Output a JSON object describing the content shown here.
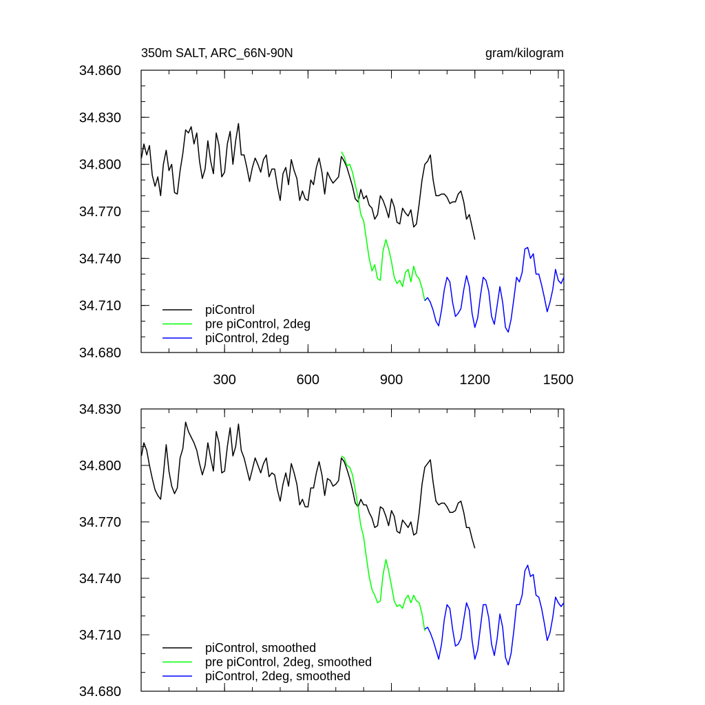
{
  "chart_data": [
    {
      "type": "line",
      "title_left": "350m SALT, ARC_66N-90N",
      "title_right": "gram/kilogram",
      "xlim": [
        0,
        1520
      ],
      "ylim": [
        34.68,
        34.86
      ],
      "x_ticks": [
        300,
        600,
        900,
        1200,
        1500
      ],
      "x_tick_labels": [
        "300",
        "600",
        "900",
        "1200",
        "1500"
      ],
      "x_minor_step": 100,
      "show_x_tick_labels": true,
      "y_ticks": [
        34.68,
        34.71,
        34.74,
        34.77,
        34.8,
        34.83,
        34.86
      ],
      "y_tick_labels": [
        "34.680",
        "34.710",
        "34.740",
        "34.770",
        "34.800",
        "34.830",
        "34.860"
      ],
      "y_minor_step": 0.01,
      "legend": {
        "position": "bottom-left",
        "entries": [
          "piControl",
          "pre piControl, 2deg",
          "piControl, 2deg"
        ]
      },
      "series": [
        {
          "name": "piControl",
          "color": "#000000",
          "x": [
            1,
            10,
            20,
            30,
            40,
            50,
            60,
            70,
            80,
            90,
            100,
            110,
            120,
            130,
            140,
            150,
            160,
            170,
            180,
            190,
            200,
            210,
            220,
            230,
            240,
            250,
            260,
            270,
            280,
            290,
            300,
            310,
            320,
            330,
            340,
            350,
            360,
            370,
            380,
            390,
            400,
            410,
            420,
            430,
            440,
            450,
            460,
            470,
            480,
            490,
            500,
            510,
            520,
            530,
            540,
            550,
            560,
            570,
            580,
            590,
            600,
            610,
            620,
            630,
            640,
            650,
            660,
            670,
            680,
            690,
            700,
            710,
            720,
            730,
            740,
            750,
            760,
            770,
            780,
            790,
            800,
            810,
            820,
            830,
            840,
            850,
            860,
            870,
            880,
            890,
            900,
            910,
            920,
            930,
            940,
            950,
            960,
            970,
            980,
            990,
            1000,
            1010,
            1020,
            1030,
            1040,
            1050,
            1060,
            1070,
            1080,
            1090,
            1100,
            1110,
            1120,
            1130,
            1140,
            1150,
            1160,
            1170,
            1180,
            1190,
            1200
          ],
          "y": [
            34.804,
            34.813,
            34.806,
            34.812,
            34.793,
            34.786,
            34.792,
            34.78,
            34.8,
            34.809,
            34.796,
            34.8,
            34.782,
            34.781,
            34.796,
            34.807,
            34.822,
            34.82,
            34.824,
            34.813,
            34.82,
            34.802,
            34.791,
            34.797,
            34.815,
            34.802,
            34.794,
            34.82,
            34.812,
            34.792,
            34.795,
            34.813,
            34.821,
            34.8,
            34.815,
            34.826,
            34.806,
            34.806,
            34.798,
            34.789,
            34.798,
            34.804,
            34.8,
            34.795,
            34.803,
            34.806,
            34.792,
            34.797,
            34.797,
            34.786,
            34.777,
            34.794,
            34.798,
            34.787,
            34.803,
            34.796,
            34.791,
            34.777,
            34.783,
            34.778,
            34.777,
            34.79,
            34.787,
            34.798,
            34.804,
            34.795,
            34.781,
            34.795,
            34.791,
            34.788,
            34.79,
            34.792,
            34.805,
            34.802,
            34.798,
            34.792,
            34.786,
            34.778,
            34.776,
            34.784,
            34.778,
            34.78,
            34.774,
            34.772,
            34.765,
            34.768,
            34.78,
            34.777,
            34.772,
            34.766,
            34.778,
            34.773,
            34.763,
            34.762,
            34.772,
            34.769,
            34.767,
            34.771,
            34.76,
            34.762,
            34.775,
            34.79,
            34.8,
            34.802,
            34.806,
            34.79,
            34.78,
            34.78,
            34.781,
            34.781,
            34.779,
            34.775,
            34.776,
            34.776,
            34.781,
            34.783,
            34.776,
            34.765,
            34.768,
            34.76,
            34.752
          ]
        },
        {
          "name": "pre piControl, 2deg",
          "color": "#00ff00",
          "x": [
            720,
            730,
            740,
            750,
            760,
            770,
            780,
            790,
            800,
            810,
            820,
            830,
            840,
            850,
            860,
            870,
            880,
            890,
            900,
            910,
            920,
            930,
            940,
            950,
            960,
            970,
            980,
            990,
            1000,
            1010,
            1020
          ],
          "y": [
            34.808,
            34.805,
            34.799,
            34.8,
            34.795,
            34.787,
            34.779,
            34.768,
            34.764,
            34.752,
            34.74,
            34.732,
            34.736,
            34.727,
            34.726,
            34.745,
            34.752,
            34.746,
            34.738,
            34.728,
            34.724,
            34.726,
            34.722,
            34.731,
            34.733,
            34.725,
            34.735,
            34.729,
            34.727,
            34.721,
            34.713
          ]
        },
        {
          "name": "piControl, 2deg",
          "color": "#0000ff",
          "x": [
            1020,
            1030,
            1040,
            1050,
            1060,
            1070,
            1080,
            1090,
            1100,
            1110,
            1120,
            1130,
            1140,
            1150,
            1160,
            1170,
            1180,
            1190,
            1200,
            1210,
            1220,
            1230,
            1240,
            1250,
            1260,
            1270,
            1280,
            1290,
            1300,
            1310,
            1320,
            1330,
            1340,
            1350,
            1360,
            1370,
            1380,
            1390,
            1400,
            1410,
            1420,
            1430,
            1440,
            1450,
            1460,
            1470,
            1480,
            1490,
            1500,
            1510,
            1520
          ],
          "y": [
            34.713,
            34.715,
            34.712,
            34.707,
            34.7,
            34.697,
            34.707,
            34.72,
            34.728,
            34.725,
            34.712,
            34.703,
            34.705,
            34.708,
            34.72,
            34.729,
            34.722,
            34.705,
            34.696,
            34.702,
            34.716,
            34.728,
            34.726,
            34.719,
            34.703,
            34.698,
            34.71,
            34.722,
            34.712,
            34.696,
            34.693,
            34.701,
            34.714,
            34.728,
            34.725,
            34.731,
            34.746,
            34.747,
            34.74,
            34.743,
            34.73,
            34.73,
            34.723,
            34.715,
            34.706,
            34.712,
            34.72,
            34.733,
            34.726,
            34.724,
            34.728
          ]
        }
      ]
    },
    {
      "type": "line",
      "xlim": [
        0,
        1520
      ],
      "ylim": [
        34.68,
        34.83
      ],
      "x_ticks": [
        300,
        600,
        900,
        1200,
        1500
      ],
      "x_tick_labels": [],
      "x_minor_step": 100,
      "show_x_tick_labels": false,
      "y_ticks": [
        34.68,
        34.71,
        34.74,
        34.77,
        34.8,
        34.83
      ],
      "y_tick_labels": [
        "34.680",
        "34.710",
        "34.740",
        "34.770",
        "34.800",
        "34.830"
      ],
      "y_minor_step": 0.01,
      "legend": {
        "position": "bottom-left",
        "entries": [
          "piControl, smoothed",
          "pre piControl, 2deg, smoothed",
          "piControl, 2deg, smoothed"
        ]
      },
      "series": [
        {
          "name": "piControl, smoothed",
          "color": "#000000",
          "x": [
            1,
            10,
            20,
            30,
            40,
            50,
            60,
            70,
            80,
            90,
            100,
            110,
            120,
            130,
            140,
            150,
            160,
            170,
            180,
            190,
            200,
            210,
            220,
            230,
            240,
            250,
            260,
            270,
            280,
            290,
            300,
            310,
            320,
            330,
            340,
            350,
            360,
            370,
            380,
            390,
            400,
            410,
            420,
            430,
            440,
            450,
            460,
            470,
            480,
            490,
            500,
            510,
            520,
            530,
            540,
            550,
            560,
            570,
            580,
            590,
            600,
            610,
            620,
            630,
            640,
            650,
            660,
            670,
            680,
            690,
            700,
            710,
            720,
            730,
            740,
            750,
            760,
            770,
            780,
            790,
            800,
            810,
            820,
            830,
            840,
            850,
            860,
            870,
            880,
            890,
            900,
            910,
            920,
            930,
            940,
            950,
            960,
            970,
            980,
            990,
            1000,
            1010,
            1020,
            1030,
            1040,
            1050,
            1060,
            1070,
            1080,
            1090,
            1100,
            1110,
            1120,
            1130,
            1140,
            1150,
            1160,
            1170,
            1180,
            1190,
            1200
          ],
          "y": [
            34.805,
            34.812,
            34.808,
            34.8,
            34.793,
            34.787,
            34.784,
            34.782,
            34.795,
            34.811,
            34.797,
            34.789,
            34.785,
            34.788,
            34.804,
            34.809,
            34.823,
            34.818,
            34.815,
            34.812,
            34.808,
            34.801,
            34.795,
            34.8,
            34.812,
            34.804,
            34.797,
            34.818,
            34.812,
            34.796,
            34.797,
            34.81,
            34.82,
            34.805,
            34.81,
            34.822,
            34.808,
            34.804,
            34.798,
            34.792,
            34.798,
            34.804,
            34.8,
            34.796,
            34.801,
            34.804,
            34.794,
            34.796,
            34.795,
            34.787,
            34.781,
            34.79,
            34.796,
            34.789,
            34.801,
            34.796,
            34.79,
            34.779,
            34.782,
            34.778,
            34.778,
            34.788,
            34.788,
            34.796,
            34.802,
            34.795,
            34.784,
            34.793,
            34.792,
            34.789,
            34.79,
            34.792,
            34.804,
            34.802,
            34.798,
            34.793,
            34.787,
            34.78,
            34.778,
            34.782,
            34.779,
            34.779,
            34.775,
            34.772,
            34.767,
            34.768,
            34.778,
            34.777,
            34.773,
            34.768,
            34.776,
            34.773,
            34.765,
            34.764,
            34.771,
            34.769,
            34.767,
            34.77,
            34.763,
            34.764,
            34.775,
            34.79,
            34.799,
            34.801,
            34.803,
            34.791,
            34.781,
            34.779,
            34.78,
            34.78,
            34.778,
            34.775,
            34.775,
            34.776,
            34.78,
            34.781,
            34.775,
            34.767,
            34.767,
            34.761,
            34.756
          ]
        },
        {
          "name": "pre piControl, 2deg, smoothed",
          "color": "#00ff00",
          "x": [
            720,
            730,
            740,
            750,
            760,
            770,
            780,
            790,
            800,
            810,
            820,
            830,
            840,
            850,
            860,
            870,
            880,
            890,
            900,
            910,
            920,
            930,
            940,
            950,
            960,
            970,
            980,
            990,
            1000,
            1010,
            1020
          ],
          "y": [
            34.805,
            34.804,
            34.8,
            34.799,
            34.795,
            34.787,
            34.778,
            34.768,
            34.762,
            34.751,
            34.741,
            34.734,
            34.731,
            34.727,
            34.728,
            34.742,
            34.75,
            34.744,
            34.736,
            34.728,
            34.725,
            34.726,
            34.724,
            34.729,
            34.731,
            34.727,
            34.731,
            34.728,
            34.727,
            34.721,
            34.712
          ]
        },
        {
          "name": "piControl, 2deg, smoothed",
          "color": "#0000ff",
          "x": [
            1020,
            1030,
            1040,
            1050,
            1060,
            1070,
            1080,
            1090,
            1100,
            1110,
            1120,
            1130,
            1140,
            1150,
            1160,
            1170,
            1180,
            1190,
            1200,
            1210,
            1220,
            1230,
            1240,
            1250,
            1260,
            1270,
            1280,
            1290,
            1300,
            1310,
            1320,
            1330,
            1340,
            1350,
            1360,
            1370,
            1380,
            1390,
            1400,
            1410,
            1420,
            1430,
            1440,
            1450,
            1460,
            1470,
            1480,
            1490,
            1500,
            1510,
            1520
          ],
          "y": [
            34.713,
            34.714,
            34.711,
            34.707,
            34.702,
            34.697,
            34.705,
            34.718,
            34.726,
            34.724,
            34.713,
            34.704,
            34.705,
            34.708,
            34.718,
            34.727,
            34.723,
            34.707,
            34.697,
            34.702,
            34.714,
            34.726,
            34.726,
            34.719,
            34.705,
            34.699,
            34.708,
            34.721,
            34.714,
            34.698,
            34.694,
            34.7,
            34.712,
            34.726,
            34.726,
            34.731,
            34.744,
            34.747,
            34.741,
            34.742,
            34.731,
            34.73,
            34.724,
            34.716,
            34.707,
            34.711,
            34.719,
            34.73,
            34.727,
            34.725,
            34.727
          ]
        }
      ]
    }
  ]
}
